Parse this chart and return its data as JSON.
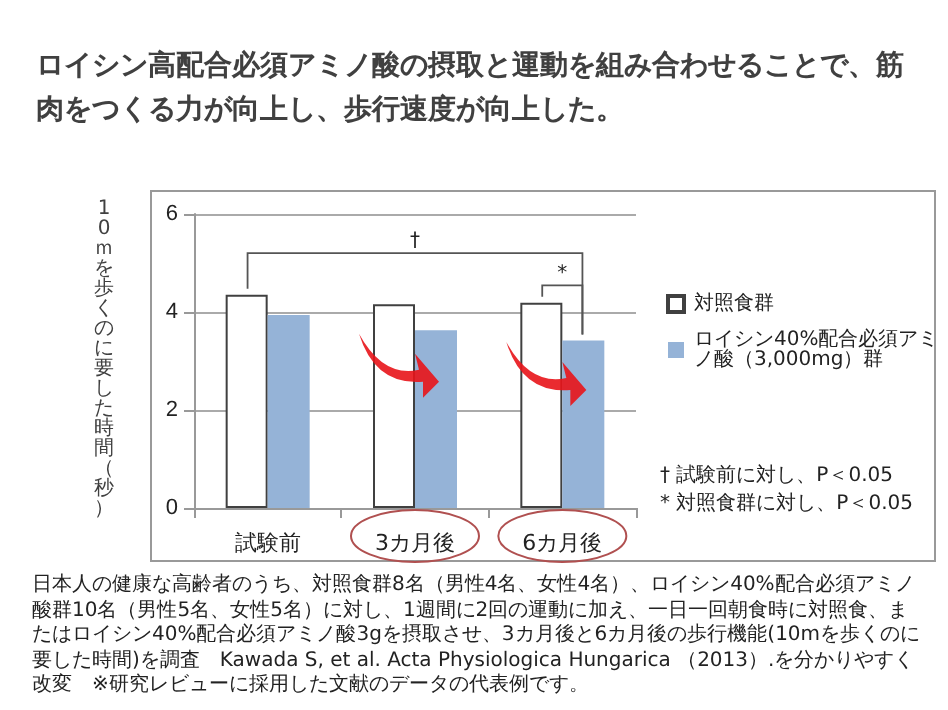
{
  "chart_data": {
    "type": "bar",
    "title": "ロイシン高配合必須アミノ酸の摂取と運動を組み合わせることで、筋肉をつくる力が向上し、歩行速度が向上した。",
    "ylabel": "10ｍを歩くのに要した時間（秒）",
    "categories": [
      "試験前",
      "3カ月後",
      "6カ月後"
    ],
    "series": [
      {
        "name": "対照食群",
        "color": "#ffffff",
        "values": [
          4.35,
          4.16,
          4.19
        ]
      },
      {
        "name": "ロイシン40%配合必須アミノ酸（3,000mg）群",
        "color": "#95b3d7",
        "values": [
          3.94,
          3.63,
          3.42
        ]
      }
    ],
    "ylim": [
      0,
      6
    ],
    "yticks": [
      0,
      2,
      4,
      6
    ],
    "grid": "y",
    "legend": "right",
    "annotations": [
      "†",
      "*",
      "† 試験前に対し、P＜0.05",
      "* 対照食群に対し、P＜0.05",
      "日本人の健康な高齢者のうち、対照食群8名（男性4名、女性4名）、ロイシン40%配合必須アミノ酸群10名（男性5名、女性5名）に対し、1週間に2回の運動に加え、一日一回朝食時に対照食、またはロイシン40%配合必須アミノ酸3gを摂取させ、3カ月後と6カ月後の歩行機能(10mを歩くのに要した時間)を調査　Kawada S, et al. Acta Physiologica Hungarica （2013）.を分かりやすく改変　※研究レビューに採用した文献のデータの代表例です。"
    ]
  }
}
